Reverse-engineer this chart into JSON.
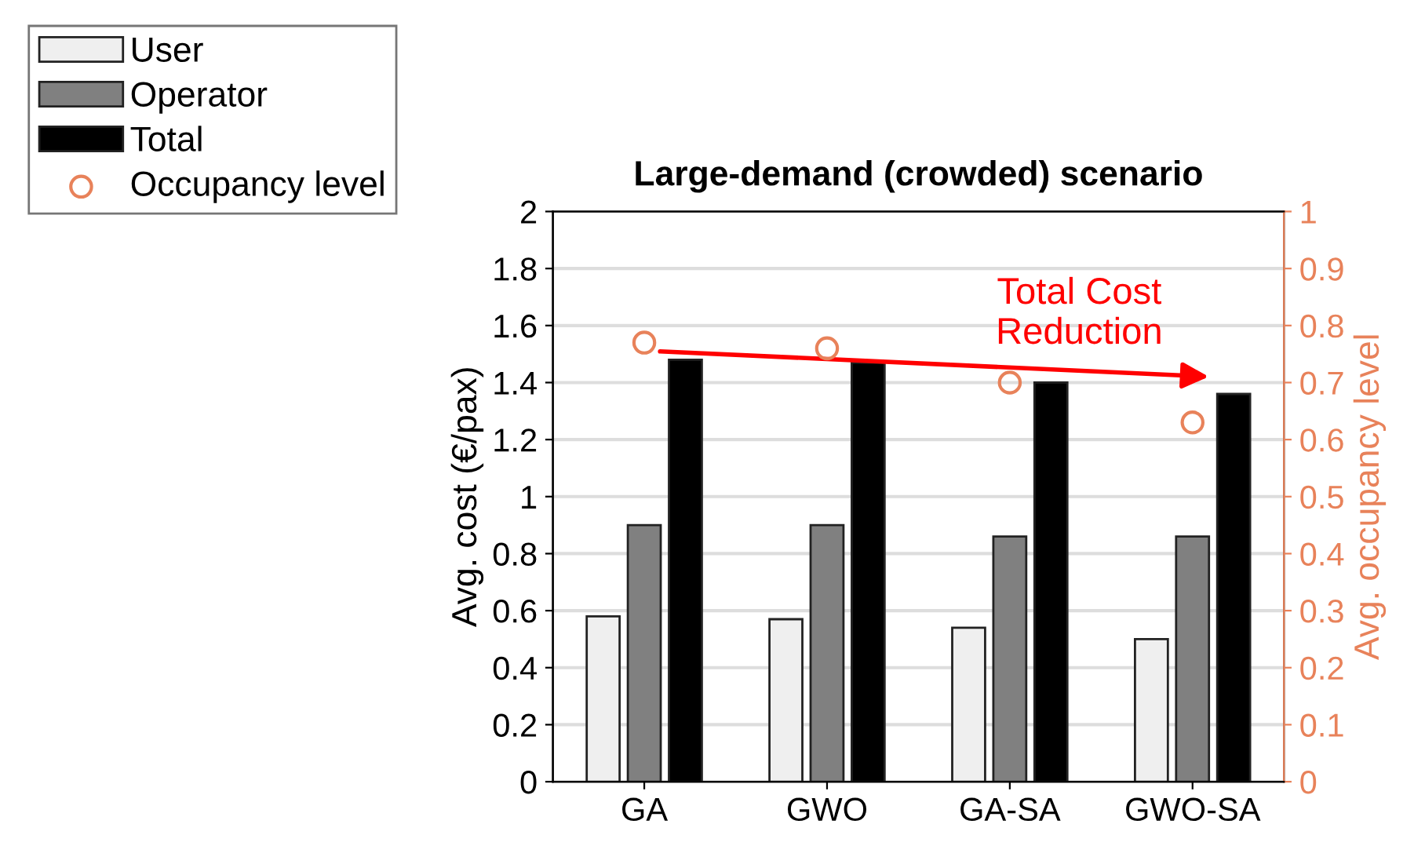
{
  "chart_data": {
    "type": "bar",
    "title": "Large-demand (crowded) scenario",
    "ylabel": "Avg. cost (€/pax)",
    "y2label": "Avg. occupancy level",
    "categories": [
      "GA",
      "GWO",
      "GA-SA",
      "GWO-SA"
    ],
    "series": [
      {
        "name": "User",
        "color": "#efefef",
        "values": [
          0.58,
          0.57,
          0.54,
          0.5
        ]
      },
      {
        "name": "Operator",
        "color": "#808080",
        "values": [
          0.9,
          0.9,
          0.86,
          0.86
        ]
      },
      {
        "name": "Total",
        "color": "#000000",
        "values": [
          1.48,
          1.47,
          1.4,
          1.36
        ]
      },
      {
        "name": "Occupancy level",
        "type": "scatter",
        "axis": "y2",
        "marker": "circle",
        "color": "#e8825a",
        "values": [
          0.77,
          0.76,
          0.7,
          0.63
        ]
      }
    ],
    "ylim": [
      0,
      2
    ],
    "yticks": [
      0,
      0.2,
      0.4,
      0.6,
      0.8,
      1,
      1.2,
      1.4,
      1.6,
      1.8,
      2
    ],
    "y2lim": [
      0,
      1
    ],
    "y2ticks": [
      0,
      0.1,
      0.2,
      0.3,
      0.4,
      0.5,
      0.6,
      0.7,
      0.8,
      0.9,
      1
    ],
    "grid": "y",
    "legend": "top left",
    "annotations": [
      "Total Cost\nReduction"
    ]
  }
}
